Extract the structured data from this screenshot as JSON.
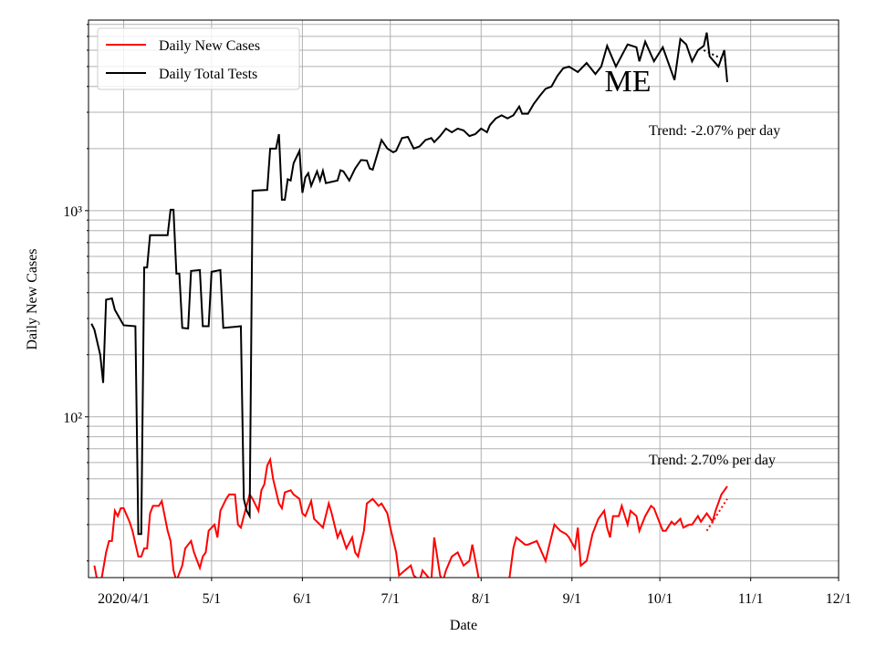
{
  "chart_data": {
    "type": "line",
    "xlabel": "Date",
    "ylabel": "Daily New Cases",
    "log_y": true,
    "grid": true,
    "legend": "upper left",
    "xlim": [
      "2020-03-20",
      "2020-12-01"
    ],
    "xticks": [
      {
        "value": "2020-04-01",
        "label": "2020/4/1"
      },
      {
        "value": "2020-05-01",
        "label": "5/1"
      },
      {
        "value": "2020-06-01",
        "label": "6/1"
      },
      {
        "value": "2020-07-01",
        "label": "7/1"
      },
      {
        "value": "2020-08-01",
        "label": "8/1"
      },
      {
        "value": "2020-09-01",
        "label": "9/1"
      },
      {
        "value": "2020-10-01",
        "label": "10/1"
      },
      {
        "value": "2020-11-01",
        "label": "11/1"
      },
      {
        "value": "2020-12-01",
        "label": "12/1"
      }
    ],
    "ylim": [
      16.6,
      8400
    ],
    "yticks": [
      {
        "value": 100,
        "label": "10²"
      },
      {
        "value": 1000,
        "label": "10³"
      }
    ],
    "minor_yticks": [
      20,
      30,
      40,
      50,
      60,
      70,
      80,
      90,
      200,
      300,
      400,
      500,
      600,
      700,
      800,
      900,
      2000,
      3000,
      4000,
      5000,
      6000,
      7000,
      8000
    ],
    "series": [
      {
        "name": "Daily New Cases",
        "color": "#ff0000",
        "x": [
          "2020-03-22",
          "2020-03-23",
          "2020-03-24",
          "2020-03-26",
          "2020-03-27",
          "2020-03-28",
          "2020-03-29",
          "2020-03-30",
          "2020-03-31",
          "2020-04-01",
          "2020-04-03",
          "2020-04-04",
          "2020-04-06",
          "2020-04-07",
          "2020-04-08",
          "2020-04-09",
          "2020-04-10",
          "2020-04-11",
          "2020-04-13",
          "2020-04-14",
          "2020-04-16",
          "2020-04-17",
          "2020-04-18",
          "2020-04-19",
          "2020-04-21",
          "2020-04-22",
          "2020-04-24",
          "2020-04-25",
          "2020-04-27",
          "2020-04-28",
          "2020-04-29",
          "2020-04-30",
          "2020-05-02",
          "2020-05-03",
          "2020-05-04",
          "2020-05-06",
          "2020-05-07",
          "2020-05-09",
          "2020-05-10",
          "2020-05-11",
          "2020-05-12",
          "2020-05-14",
          "2020-05-15",
          "2020-05-17",
          "2020-05-18",
          "2020-05-19",
          "2020-05-20",
          "2020-05-21",
          "2020-05-22",
          "2020-05-24",
          "2020-05-25",
          "2020-05-26",
          "2020-05-28",
          "2020-05-29",
          "2020-05-31",
          "2020-06-01",
          "2020-06-02",
          "2020-06-04",
          "2020-06-05",
          "2020-06-07",
          "2020-06-08",
          "2020-06-10",
          "2020-06-11",
          "2020-06-13",
          "2020-06-14",
          "2020-06-16",
          "2020-06-18",
          "2020-06-19",
          "2020-06-20",
          "2020-06-22",
          "2020-06-23",
          "2020-06-25",
          "2020-06-27",
          "2020-06-28",
          "2020-06-30",
          "2020-07-01",
          "2020-07-03",
          "2020-07-04",
          "2020-07-06",
          "2020-07-08",
          "2020-07-09",
          "2020-07-11",
          "2020-07-12",
          "2020-07-15",
          "2020-07-16",
          "2020-07-18",
          "2020-07-19",
          "2020-07-20",
          "2020-07-22",
          "2020-07-24",
          "2020-07-26",
          "2020-07-28",
          "2020-07-29",
          "2020-07-31",
          "2020-08-01",
          "2020-08-10",
          "2020-08-12",
          "2020-08-13",
          "2020-08-16",
          "2020-08-17",
          "2020-08-20",
          "2020-08-23",
          "2020-08-24",
          "2020-08-26",
          "2020-08-28",
          "2020-08-30",
          "2020-08-31",
          "2020-09-02",
          "2020-09-03",
          "2020-09-04",
          "2020-09-06",
          "2020-09-08",
          "2020-09-10",
          "2020-09-12",
          "2020-09-13",
          "2020-09-14",
          "2020-09-15",
          "2020-09-17",
          "2020-09-18",
          "2020-09-20",
          "2020-09-21",
          "2020-09-23",
          "2020-09-24",
          "2020-09-26",
          "2020-09-28",
          "2020-09-29",
          "2020-10-02",
          "2020-10-03",
          "2020-10-05",
          "2020-10-06",
          "2020-10-08",
          "2020-10-09",
          "2020-10-11",
          "2020-10-12",
          "2020-10-14",
          "2020-10-15",
          "2020-10-17",
          "2020-10-19",
          "2020-10-20",
          "2020-10-22",
          "2020-10-24"
        ],
        "values": [
          19,
          16,
          15,
          22,
          25,
          25,
          35,
          33,
          36,
          36,
          31,
          28,
          21,
          21,
          23,
          23,
          34,
          37,
          37,
          39,
          28,
          25,
          18,
          16,
          19,
          23,
          25,
          22,
          18.5,
          21,
          22,
          28,
          30,
          26,
          35,
          40,
          42,
          42,
          30,
          29,
          33,
          42,
          40,
          35,
          44,
          47,
          58,
          62,
          50,
          38,
          36,
          43,
          44,
          42,
          40,
          34,
          33,
          39,
          32,
          30,
          29,
          38,
          34,
          26,
          28,
          23,
          26,
          22,
          21,
          28,
          38,
          40,
          37,
          38,
          34,
          29,
          22,
          17,
          18,
          19,
          17,
          16,
          18,
          16,
          26,
          17,
          16,
          18,
          21,
          22,
          19,
          20,
          24,
          17,
          14,
          14,
          23,
          26,
          24,
          24,
          25,
          20,
          23,
          30,
          28,
          27,
          26,
          23,
          29,
          19,
          20,
          27,
          32,
          35,
          29,
          26,
          33,
          33,
          37,
          30,
          35,
          33,
          28,
          33,
          37,
          36,
          28,
          28,
          31,
          30,
          32,
          29,
          30,
          30,
          33,
          31,
          34,
          31,
          35,
          42,
          46
        ]
      },
      {
        "name": "Daily Total Tests",
        "color": "#000000",
        "x": [
          "2020-03-21",
          "2020-03-22",
          "2020-03-24",
          "2020-03-25",
          "2020-03-26",
          "2020-03-28",
          "2020-03-29",
          "2020-04-01",
          "2020-04-05",
          "2020-04-06",
          "2020-04-07",
          "2020-04-08",
          "2020-04-09",
          "2020-04-10",
          "2020-04-16",
          "2020-04-17",
          "2020-04-18",
          "2020-04-19",
          "2020-04-20",
          "2020-04-21",
          "2020-04-23",
          "2020-04-24",
          "2020-04-27",
          "2020-04-28",
          "2020-04-30",
          "2020-05-01",
          "2020-05-04",
          "2020-05-05",
          "2020-05-11",
          "2020-05-12",
          "2020-05-13",
          "2020-05-14",
          "2020-05-15",
          "2020-05-20",
          "2020-05-21",
          "2020-05-23",
          "2020-05-24",
          "2020-05-25",
          "2020-05-26",
          "2020-05-27",
          "2020-05-28",
          "2020-05-29",
          "2020-05-31",
          "2020-06-01",
          "2020-06-02",
          "2020-06-03",
          "2020-06-04",
          "2020-06-06",
          "2020-06-07",
          "2020-06-08",
          "2020-06-09",
          "2020-06-11",
          "2020-06-13",
          "2020-06-14",
          "2020-06-15",
          "2020-06-17",
          "2020-06-19",
          "2020-06-21",
          "2020-06-23",
          "2020-06-24",
          "2020-06-25",
          "2020-06-28",
          "2020-06-30",
          "2020-07-02",
          "2020-07-03",
          "2020-07-05",
          "2020-07-07",
          "2020-07-09",
          "2020-07-11",
          "2020-07-13",
          "2020-07-15",
          "2020-07-16",
          "2020-07-18",
          "2020-07-20",
          "2020-07-22",
          "2020-07-24",
          "2020-07-26",
          "2020-07-28",
          "2020-07-30",
          "2020-08-01",
          "2020-08-03",
          "2020-08-04",
          "2020-08-06",
          "2020-08-08",
          "2020-08-10",
          "2020-08-12",
          "2020-08-14",
          "2020-08-15",
          "2020-08-17",
          "2020-08-19",
          "2020-08-21",
          "2020-08-23",
          "2020-08-25",
          "2020-08-27",
          "2020-08-29",
          "2020-08-31",
          "2020-09-03",
          "2020-09-06",
          "2020-09-09",
          "2020-09-11",
          "2020-09-13",
          "2020-09-16",
          "2020-09-20",
          "2020-09-23",
          "2020-09-24",
          "2020-09-26",
          "2020-09-29",
          "2020-10-02",
          "2020-10-06",
          "2020-10-08",
          "2020-10-10",
          "2020-10-12",
          "2020-10-14",
          "2020-10-16",
          "2020-10-17",
          "2020-10-18",
          "2020-10-21",
          "2020-10-23",
          "2020-10-24"
        ],
        "values": [
          283,
          265,
          200,
          146,
          370,
          375,
          330,
          278,
          275,
          27,
          27,
          530,
          530,
          760,
          760,
          1010,
          1010,
          495,
          495,
          270,
          268,
          510,
          515,
          275,
          275,
          505,
          515,
          270,
          275,
          40,
          35,
          33,
          1250,
          1260,
          2000,
          2000,
          2350,
          1130,
          1130,
          1420,
          1400,
          1700,
          1950,
          1220,
          1450,
          1520,
          1320,
          1550,
          1400,
          1560,
          1360,
          1380,
          1400,
          1570,
          1550,
          1400,
          1600,
          1760,
          1750,
          1600,
          1580,
          2200,
          2000,
          1920,
          1950,
          2250,
          2280,
          2000,
          2050,
          2200,
          2250,
          2150,
          2300,
          2500,
          2400,
          2500,
          2450,
          2300,
          2350,
          2500,
          2400,
          2600,
          2800,
          2900,
          2800,
          2900,
          3200,
          2950,
          2950,
          3300,
          3600,
          3900,
          4000,
          4500,
          4900,
          5000,
          4700,
          5200,
          4600,
          5000,
          6300,
          5000,
          6400,
          6200,
          5300,
          6600,
          5300,
          6200,
          4300,
          6800,
          6400,
          5300,
          6000,
          6300,
          7300,
          5600,
          5000,
          6000,
          4200
        ]
      }
    ],
    "trend_lines": [
      {
        "color": "#ff0000",
        "x": [
          "2020-10-17",
          "2020-10-24"
        ],
        "values": [
          28,
          40
        ]
      },
      {
        "color": "#000000",
        "x": [
          "2020-10-16",
          "2020-10-24"
        ],
        "values": [
          6000,
          5300
        ]
      }
    ],
    "annotations": [
      {
        "text": "ME"
      },
      {
        "text": "Trend: -2.07% per day"
      },
      {
        "text": "Trend: 2.70% per day"
      }
    ]
  }
}
